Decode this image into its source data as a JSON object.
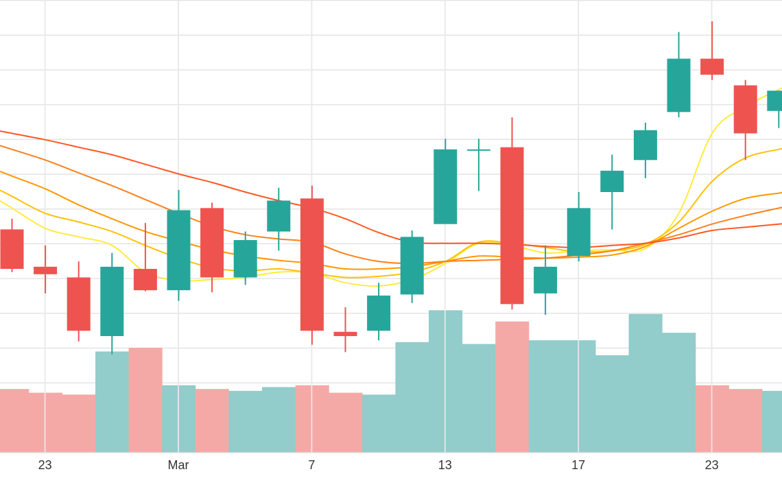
{
  "chart_data": {
    "type": "candlestick",
    "x_ticks": [
      "23",
      "Mar",
      "7",
      "13",
      "17",
      "23"
    ],
    "y_axis": {
      "grid": true,
      "lines": 13
    },
    "grid": true,
    "colors": {
      "up": "#26a69a",
      "down": "#ef5350",
      "volume_up": "#92cccb",
      "volume_down": "#f5a9a6",
      "ma": [
        "#ffeb3b",
        "#ffc107",
        "#ff9800",
        "#ff7f17",
        "#ff5722"
      ]
    },
    "candles": [
      {
        "open": 44.5,
        "high": 45.5,
        "low": 40.5,
        "close": 40.8,
        "volume": 1.7
      },
      {
        "open": 41.0,
        "high": 43.0,
        "low": 38.5,
        "close": 40.3,
        "volume": 1.6
      },
      {
        "open": 40.0,
        "high": 41.5,
        "low": 34.0,
        "close": 35.0,
        "volume": 1.55
      },
      {
        "open": 34.5,
        "high": 42.3,
        "low": 32.8,
        "close": 41.0,
        "volume": 2.7
      },
      {
        "open": 40.8,
        "high": 45.1,
        "low": 38.7,
        "close": 38.8,
        "volume": 2.8
      },
      {
        "open": 38.8,
        "high": 48.2,
        "low": 37.8,
        "close": 46.3,
        "volume": 1.8
      },
      {
        "open": 46.5,
        "high": 47.0,
        "low": 38.6,
        "close": 40.0,
        "volume": 1.7
      },
      {
        "open": 40.0,
        "high": 44.3,
        "low": 39.3,
        "close": 43.5,
        "volume": 1.65
      },
      {
        "open": 44.3,
        "high": 48.4,
        "low": 42.5,
        "close": 47.2,
        "volume": 1.75
      },
      {
        "open": 47.4,
        "high": 48.6,
        "low": 33.7,
        "close": 35.0,
        "volume": 1.8
      },
      {
        "open": 34.9,
        "high": 37.2,
        "low": 33.0,
        "close": 34.5,
        "volume": 1.6
      },
      {
        "open": 35.0,
        "high": 39.5,
        "low": 34.1,
        "close": 38.3,
        "volume": 1.55
      },
      {
        "open": 38.4,
        "high": 44.4,
        "low": 37.6,
        "close": 43.8,
        "volume": 2.95
      },
      {
        "open": 45.0,
        "high": 53.0,
        "low": 45.0,
        "close": 52.0,
        "volume": 3.8
      },
      {
        "open": 52.0,
        "high": 53.0,
        "low": 48.1,
        "close": 52.0,
        "volume": 2.9
      },
      {
        "open": 52.2,
        "high": 55.0,
        "low": 37.0,
        "close": 37.5,
        "volume": 3.5
      },
      {
        "open": 38.5,
        "high": 43.0,
        "low": 36.5,
        "close": 41.0,
        "volume": 3.0
      },
      {
        "open": 42.0,
        "high": 48.0,
        "low": 41.5,
        "close": 46.5,
        "volume": 3.0
      },
      {
        "open": 48.0,
        "high": 51.5,
        "low": 44.5,
        "close": 50.0,
        "volume": 2.6
      },
      {
        "open": 51.0,
        "high": 54.5,
        "low": 49.3,
        "close": 53.8,
        "volume": 3.7
      },
      {
        "open": 55.5,
        "high": 63.0,
        "low": 55.0,
        "close": 60.5,
        "volume": 3.2
      },
      {
        "open": 60.5,
        "high": 64.0,
        "low": 58.5,
        "close": 59.0,
        "volume": 1.8
      },
      {
        "open": 58.0,
        "high": 58.5,
        "low": 51.0,
        "close": 53.5,
        "volume": 1.7
      },
      {
        "open": 55.6,
        "high": 57.5,
        "low": 54.0,
        "close": 57.5,
        "volume": 1.65
      }
    ],
    "moving_averages": [
      {
        "values": [
          46.5,
          44.6,
          43.8,
          43.0,
          40.5,
          39.7,
          39.8,
          40.0,
          40.5,
          40.4,
          39.5,
          39.2,
          39.8,
          41.3,
          43.2,
          43.0,
          42.3,
          42.5,
          42.6,
          42.7,
          46.0,
          53.5,
          56.0,
          57.6
        ]
      },
      {
        "values": [
          47.6,
          46.0,
          45.2,
          44.3,
          43.0,
          41.8,
          40.9,
          40.6,
          40.8,
          40.4,
          40.0,
          40.1,
          40.5,
          41.5,
          43.3,
          43.2,
          42.8,
          42.4,
          42.5,
          43.1,
          45.2,
          49.0,
          51.2,
          52.0
        ]
      },
      {
        "values": [
          49.5,
          48.3,
          46.8,
          45.5,
          44.3,
          43.4,
          42.6,
          42.0,
          41.6,
          41.3,
          40.8,
          40.8,
          41.0,
          41.5,
          42.0,
          41.9,
          41.8,
          41.9,
          42.1,
          42.9,
          44.6,
          46.2,
          47.4,
          47.9
        ]
      },
      {
        "values": [
          52.0,
          51.0,
          49.8,
          48.6,
          47.3,
          46.0,
          44.8,
          44.0,
          43.6,
          43.3,
          42.2,
          41.5,
          41.3,
          41.5,
          41.6,
          41.7,
          41.8,
          42.1,
          42.5,
          43.2,
          44.0,
          45.0,
          45.8,
          46.5
        ]
      },
      {
        "values": [
          53.5,
          52.9,
          52.2,
          51.5,
          50.6,
          49.7,
          48.9,
          48.0,
          47.2,
          46.5,
          45.5,
          44.2,
          43.3,
          43.2,
          43.2,
          43.1,
          42.9,
          42.8,
          43.0,
          43.2,
          43.7,
          44.4,
          44.7,
          45.0
        ]
      }
    ]
  }
}
